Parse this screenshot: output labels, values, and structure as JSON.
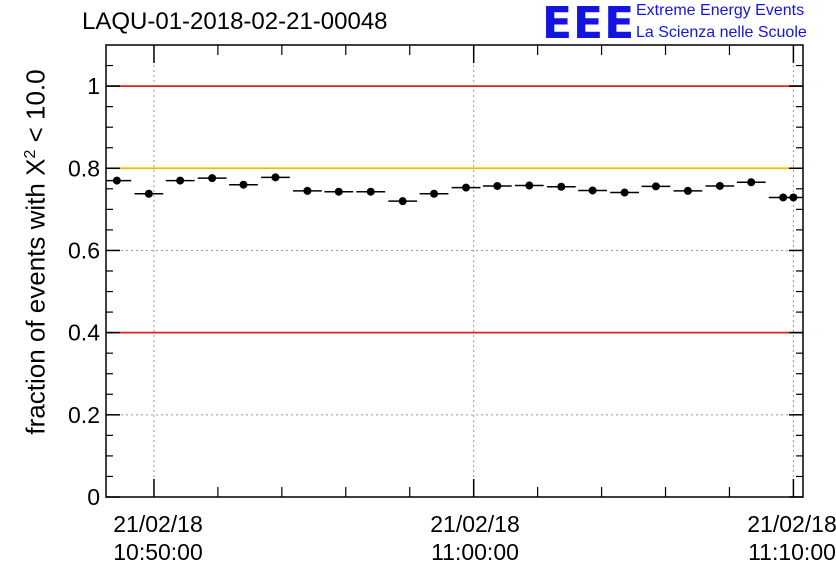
{
  "title": "LAQU-01-2018-02-21-00048",
  "logo": {
    "mark": "EEE",
    "line1": "Extreme Energy Events",
    "line2": "La Scienza nelle Scuole",
    "color": "#1414e0"
  },
  "colors": {
    "limit_red": "#e02020",
    "ref_orange": "#f5b800",
    "marker": "#000000",
    "grid": "#999999"
  },
  "chart_data": {
    "type": "scatter",
    "title": "LAQU-01-2018-02-21-00048",
    "ylabel_text": "fraction of events with X",
    "ylabel_sup": "2",
    "ylabel_tail": " < 10.0",
    "xlabel": "",
    "ylim": [
      0,
      1.1
    ],
    "xlim_minutes": [
      -1.5,
      20.3
    ],
    "grid": true,
    "y_ticks": [
      {
        "value": 0,
        "label": "0"
      },
      {
        "value": 0.2,
        "label": "0.2"
      },
      {
        "value": 0.4,
        "label": "0.4"
      },
      {
        "value": 0.6,
        "label": "0.6"
      },
      {
        "value": 0.8,
        "label": "0.8"
      },
      {
        "value": 1.0,
        "label": "1"
      }
    ],
    "x_ticks": [
      {
        "minutes": 0,
        "date": "21/02/18",
        "time": "10:50:00"
      },
      {
        "minutes": 10,
        "date": "21/02/18",
        "time": "11:00:00"
      },
      {
        "minutes": 20,
        "date": "21/02/18",
        "time": "11:10:00"
      }
    ],
    "hlines": [
      {
        "name": "upper-limit",
        "y": 1.0,
        "color": "#e02020"
      },
      {
        "name": "reference",
        "y": 0.8,
        "color": "#f5b800"
      },
      {
        "name": "lower-limit",
        "y": 0.4,
        "color": "#e02020"
      }
    ],
    "bin_width_minutes": 0.9,
    "series": [
      {
        "name": "fraction",
        "x_minutes": [
          -1.16,
          -0.16,
          0.82,
          1.82,
          2.8,
          3.8,
          4.8,
          5.78,
          6.78,
          7.78,
          8.76,
          9.76,
          10.74,
          11.74,
          12.74,
          13.72,
          14.72,
          15.7,
          16.7,
          17.7,
          18.68,
          19.68,
          20.0
        ],
        "values": [
          0.77,
          0.738,
          0.77,
          0.776,
          0.76,
          0.778,
          0.745,
          0.743,
          0.743,
          0.72,
          0.738,
          0.753,
          0.757,
          0.758,
          0.755,
          0.746,
          0.741,
          0.756,
          0.745,
          0.757,
          0.766,
          0.729,
          0.729
        ]
      }
    ]
  }
}
